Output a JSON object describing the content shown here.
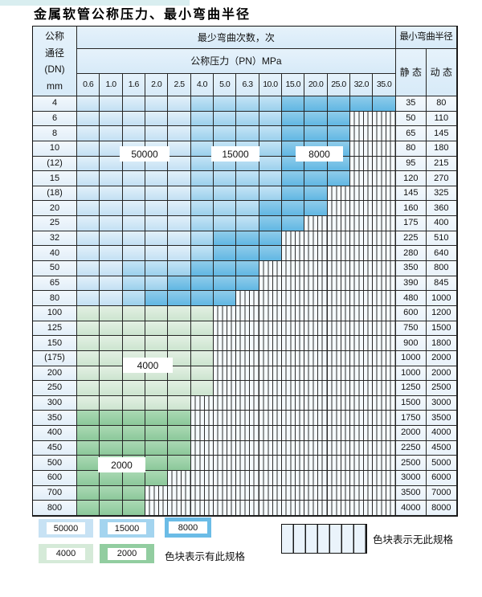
{
  "title": "金属软管公称压力、最小弯曲半径",
  "table": {
    "corner_lines": [
      "公称",
      "通径",
      "(DN)",
      "mm"
    ],
    "header_bend_cycles": "最少弯曲次数，次",
    "header_min_radius": "最小弯曲半径",
    "header_pressure": "公称压力（PN）MPa",
    "static_label": "静 态",
    "dynamic_label": "动 态",
    "pressure_columns": [
      "0.6",
      "1.0",
      "1.6",
      "2.0",
      "2.5",
      "4.0",
      "5.0",
      "6.3",
      "10.0",
      "15.0",
      "20.0",
      "25.0",
      "32.0",
      "35.0"
    ],
    "cell_codes": {
      "A": "c50000",
      "B": "c15000",
      "C": "c8000",
      "G": "c4000",
      "H": "c2000",
      "X": "hatch"
    },
    "rows": [
      {
        "dn": "4",
        "cells": "AAAAABBBBCCCCC",
        "static": "35",
        "dynamic": "80"
      },
      {
        "dn": "6",
        "cells": "AAAAABBBBCCCXX",
        "static": "50",
        "dynamic": "110"
      },
      {
        "dn": "8",
        "cells": "AAAAABBBBCCCXX",
        "static": "65",
        "dynamic": "145"
      },
      {
        "dn": "10",
        "cells": "AAAAABBBBCCCXX",
        "static": "80",
        "dynamic": "180"
      },
      {
        "dn": "(12)",
        "cells": "AAAAABBBBCCCXX",
        "static": "95",
        "dynamic": "215"
      },
      {
        "dn": "15",
        "cells": "AAAAABBBBCCCXX",
        "static": "120",
        "dynamic": "270"
      },
      {
        "dn": "(18)",
        "cells": "AAAAABBBBCCXXX",
        "static": "145",
        "dynamic": "325"
      },
      {
        "dn": "20",
        "cells": "AAAAABBBCCCXXX",
        "static": "160",
        "dynamic": "360"
      },
      {
        "dn": "25",
        "cells": "AAAAABBBCCXXXX",
        "static": "175",
        "dynamic": "400"
      },
      {
        "dn": "32",
        "cells": "AAAAABCCCXXXXX",
        "static": "225",
        "dynamic": "510"
      },
      {
        "dn": "40",
        "cells": "AAAAABCCCXXXXX",
        "static": "280",
        "dynamic": "640"
      },
      {
        "dn": "50",
        "cells": "AABBBCCCXXXXXX",
        "static": "350",
        "dynamic": "800"
      },
      {
        "dn": "65",
        "cells": "AABBCCCCXXXXXX",
        "static": "390",
        "dynamic": "845"
      },
      {
        "dn": "80",
        "cells": "AABCCCCXXXXXXX",
        "static": "480",
        "dynamic": "1000"
      },
      {
        "dn": "100",
        "cells": "GGGGGGXXXXXXXX",
        "static": "600",
        "dynamic": "1200"
      },
      {
        "dn": "125",
        "cells": "GGGGGGXXXXXXXX",
        "static": "750",
        "dynamic": "1500"
      },
      {
        "dn": "150",
        "cells": "GGGGGGXXXXXXXX",
        "static": "900",
        "dynamic": "1800"
      },
      {
        "dn": "(175)",
        "cells": "GGGGGGXXXXXXXX",
        "static": "1000",
        "dynamic": "2000"
      },
      {
        "dn": "200",
        "cells": "GGGGGGXXXXXXXX",
        "static": "1000",
        "dynamic": "2000"
      },
      {
        "dn": "250",
        "cells": "GGGGGGXXXXXXXX",
        "static": "1250",
        "dynamic": "2500"
      },
      {
        "dn": "300",
        "cells": "GGGGGXXXXXXXXX",
        "static": "1500",
        "dynamic": "3000"
      },
      {
        "dn": "350",
        "cells": "HHHHHXXXXXXXXX",
        "static": "1750",
        "dynamic": "3500"
      },
      {
        "dn": "400",
        "cells": "HHHHHXXXXXXXXX",
        "static": "2000",
        "dynamic": "4000"
      },
      {
        "dn": "450",
        "cells": "HHHHHXXXXXXXXX",
        "static": "2250",
        "dynamic": "4500"
      },
      {
        "dn": "500",
        "cells": "HHHHHXXXXXXXXX",
        "static": "2500",
        "dynamic": "5000"
      },
      {
        "dn": "600",
        "cells": "HHHHXXXXXXXXXX",
        "static": "3000",
        "dynamic": "6000"
      },
      {
        "dn": "700",
        "cells": "HHHXXXXXXXXXXX",
        "static": "3500",
        "dynamic": "7000"
      },
      {
        "dn": "800",
        "cells": "HHHXXXXXXXXXXX",
        "static": "4000",
        "dynamic": "8000"
      }
    ]
  },
  "overlays": [
    {
      "text": "50000",
      "cls": "ov-50000"
    },
    {
      "text": "15000",
      "cls": "ov-15000"
    },
    {
      "text": "8000",
      "cls": "ov-8000"
    },
    {
      "text": "4000",
      "cls": "ov-4000"
    },
    {
      "text": "2000",
      "cls": "ov-2000"
    }
  ],
  "legend": {
    "items": [
      {
        "label": "50000"
      },
      {
        "label": "15000"
      },
      {
        "label": "8000"
      },
      {
        "label": "4000"
      },
      {
        "label": "2000"
      }
    ],
    "note_present": "色块表示有此规格",
    "note_absent": "色块表示无此规格"
  },
  "colors": {
    "c50000": "#c7e2f4",
    "c15000": "#a3d4ef",
    "c8000": "#6bbce6",
    "c4000": "#d5ead8",
    "c2000": "#92cda0",
    "hatch_bg": "#f5fafd",
    "hatch_line": "#303030",
    "header_bg": "#ddeef9",
    "border": "#262626"
  }
}
